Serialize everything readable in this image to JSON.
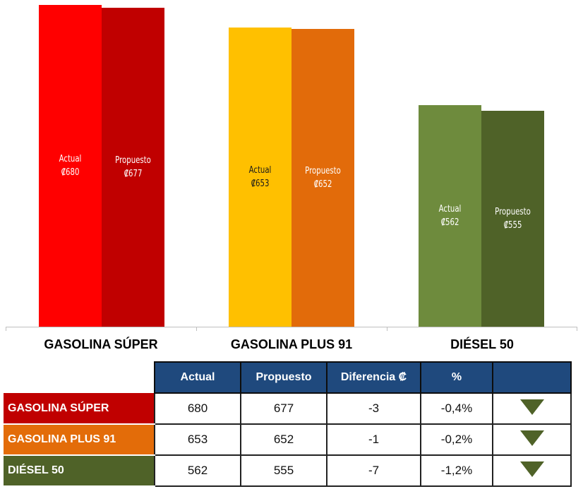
{
  "chart_data": {
    "type": "bar",
    "categories": [
      "GASOLINA SÚPER",
      "GASOLINA PLUS 91",
      "DIÉSEL 50"
    ],
    "series": [
      {
        "name": "Actual",
        "values": [
          680,
          653,
          562
        ],
        "colors": [
          "#ff0000",
          "#ffc000",
          "#6e8b3d"
        ],
        "label_colors": [
          "#ffffff",
          "#1a1a1a",
          "#ffffff"
        ]
      },
      {
        "name": "Propuesto",
        "values": [
          677,
          652,
          555
        ],
        "colors": [
          "#c00000",
          "#e26b0a",
          "#4f6228"
        ],
        "label_colors": [
          "#ffffff",
          "#ffffff",
          "#ffffff"
        ]
      }
    ],
    "currency_symbol": "₡",
    "ylim": [
      300,
      680
    ],
    "grid": false
  },
  "table": {
    "headers": [
      "Actual",
      "Propuesto",
      "Diferencia ₡",
      "%",
      ""
    ],
    "rows": [
      {
        "name": "GASOLINA SÚPER",
        "color": "#c00000",
        "actual": "680",
        "propuesto": "677",
        "diferencia": "-3",
        "pct": "-0,4%",
        "trend": "down-triangle-icon"
      },
      {
        "name": "GASOLINA PLUS 91",
        "color": "#e36c09",
        "actual": "653",
        "propuesto": "652",
        "diferencia": "-1",
        "pct": "-0,2%",
        "trend": "down-triangle-icon"
      },
      {
        "name": "DIÉSEL 50",
        "color": "#4f6228",
        "actual": "562",
        "propuesto": "555",
        "diferencia": "-7",
        "pct": "-1,2%",
        "trend": "down-triangle-icon"
      }
    ],
    "trend_color": "#4f6228"
  }
}
